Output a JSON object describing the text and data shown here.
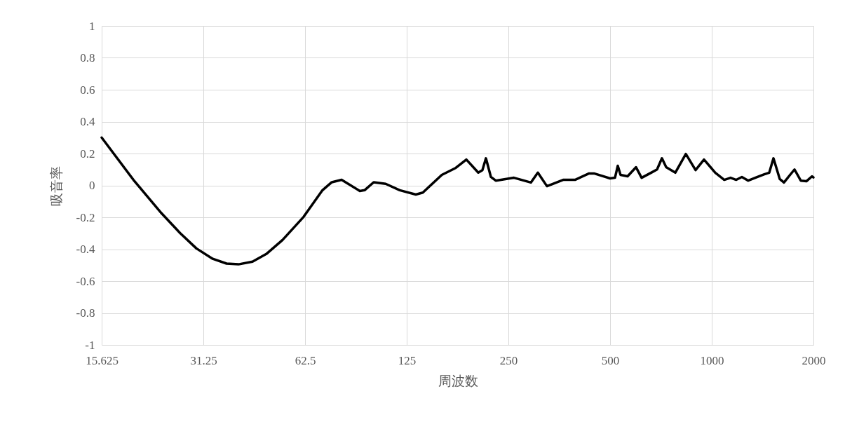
{
  "chart_data": {
    "type": "line",
    "xlabel": "周波数",
    "ylabel": "吸音率",
    "log": "x",
    "grid": true,
    "legend": false,
    "marker": "none",
    "line_style": "solid",
    "xlim": [
      15.625,
      2000
    ],
    "xticks": [
      15.625,
      31.25,
      62.5,
      125,
      250,
      500,
      1000,
      2000
    ],
    "ylim": [
      -1,
      1
    ],
    "yticks": [
      -1,
      -0.8,
      -0.6,
      -0.4,
      -0.2,
      0,
      0.2,
      0.4,
      0.6,
      0.8,
      1
    ],
    "x": [
      15.625,
      19.4,
      23.5,
      26.7,
      29.8,
      33.3,
      36.6,
      39.7,
      43.7,
      48,
      53.6,
      61.9,
      70.4,
      75,
      80.2,
      90.8,
      93.8,
      99.8,
      108.3,
      119.2,
      133,
      139.5,
      158.8,
      174.7,
      187.7,
      203.6,
      209.4,
      214.5,
      221.9,
      229.4,
      259.7,
      291.4,
      305.6,
      325.2,
      363,
      393.7,
      433.3,
      448,
      500,
      517,
      527,
      537,
      563.4,
      596.8,
      620,
      666,
      688.7,
      712,
      733,
      780,
      838,
      895.6,
      948.5,
      1024,
      1089,
      1137,
      1181.6,
      1228,
      1282,
      1345,
      1431,
      1480,
      1523,
      1590,
      1636,
      1692,
      1758,
      1835,
      1906,
      1981,
      2000
    ],
    "series": [
      {
        "color": "#000000",
        "values": [
          0.3,
          0.035,
          -0.175,
          -0.3,
          -0.395,
          -0.46,
          -0.49,
          -0.495,
          -0.478,
          -0.43,
          -0.342,
          -0.197,
          -0.03,
          0.02,
          0.035,
          -0.035,
          -0.03,
          0.02,
          0.01,
          -0.03,
          -0.057,
          -0.045,
          0.066,
          0.11,
          0.162,
          0.08,
          0.096,
          0.17,
          0.053,
          0.03,
          0.048,
          0.018,
          0.08,
          -0.005,
          0.035,
          0.035,
          0.075,
          0.075,
          0.044,
          0.048,
          0.123,
          0.066,
          0.057,
          0.114,
          0.048,
          0.083,
          0.1,
          0.17,
          0.114,
          0.08,
          0.197,
          0.096,
          0.162,
          0.08,
          0.035,
          0.048,
          0.035,
          0.053,
          0.03,
          0.048,
          0.07,
          0.08,
          0.17,
          0.04,
          0.018,
          0.057,
          0.1,
          0.03,
          0.026,
          0.057,
          0.05
        ]
      }
    ]
  }
}
